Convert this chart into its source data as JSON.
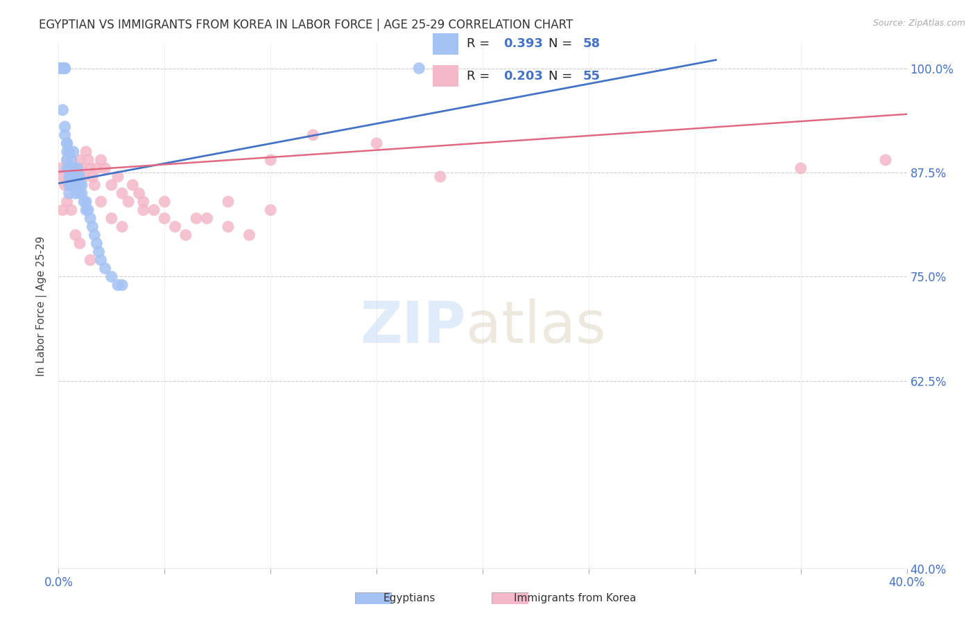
{
  "title": "EGYPTIAN VS IMMIGRANTS FROM KOREA IN LABOR FORCE | AGE 25-29 CORRELATION CHART",
  "source": "Source: ZipAtlas.com",
  "ylabel": "In Labor Force | Age 25-29",
  "xlim": [
    0.0,
    0.4
  ],
  "ylim": [
    0.4,
    1.03
  ],
  "yticks": [
    0.4,
    0.625,
    0.75,
    0.875,
    1.0
  ],
  "ytick_labels": [
    "40.0%",
    "62.5%",
    "75.0%",
    "87.5%",
    "100.0%"
  ],
  "legend_R1": "0.393",
  "legend_N1": "58",
  "legend_R2": "0.203",
  "legend_N2": "55",
  "color_egyptian": "#a4c2f4",
  "color_korea": "#f4b8c8",
  "color_line_egyptian": "#4472c4",
  "color_line_korea": "#e06882",
  "background_color": "#ffffff",
  "eg_line_x0": 0.0,
  "eg_line_y0": 0.862,
  "eg_line_x1": 0.31,
  "eg_line_y1": 1.01,
  "kr_line_x0": 0.0,
  "kr_line_y0": 0.876,
  "kr_line_x1": 0.4,
  "kr_line_y1": 0.945,
  "egyptians_x": [
    0.001,
    0.001,
    0.001,
    0.002,
    0.002,
    0.002,
    0.002,
    0.003,
    0.003,
    0.003,
    0.003,
    0.004,
    0.004,
    0.004,
    0.004,
    0.005,
    0.005,
    0.005,
    0.005,
    0.006,
    0.006,
    0.006,
    0.007,
    0.007,
    0.007,
    0.008,
    0.008,
    0.008,
    0.009,
    0.009,
    0.01,
    0.01,
    0.011,
    0.011,
    0.012,
    0.013,
    0.013,
    0.014,
    0.015,
    0.016,
    0.017,
    0.018,
    0.019,
    0.02,
    0.022,
    0.025,
    0.028,
    0.03,
    0.002,
    0.003,
    0.004,
    0.005,
    0.006,
    0.007,
    0.008,
    0.009,
    0.01,
    0.17
  ],
  "egyptians_y": [
    1.0,
    1.0,
    1.0,
    1.0,
    1.0,
    1.0,
    1.0,
    1.0,
    1.0,
    1.0,
    0.92,
    0.91,
    0.9,
    0.89,
    0.88,
    0.88,
    0.87,
    0.86,
    0.85,
    0.88,
    0.87,
    0.86,
    0.9,
    0.88,
    0.86,
    0.87,
    0.86,
    0.85,
    0.88,
    0.87,
    0.87,
    0.86,
    0.86,
    0.85,
    0.84,
    0.84,
    0.83,
    0.83,
    0.82,
    0.81,
    0.8,
    0.79,
    0.78,
    0.77,
    0.76,
    0.75,
    0.74,
    0.74,
    0.95,
    0.93,
    0.91,
    0.9,
    0.89,
    0.88,
    0.87,
    0.86,
    0.85,
    1.0
  ],
  "korea_x": [
    0.001,
    0.002,
    0.003,
    0.004,
    0.005,
    0.005,
    0.006,
    0.007,
    0.008,
    0.009,
    0.01,
    0.011,
    0.012,
    0.013,
    0.014,
    0.015,
    0.016,
    0.017,
    0.018,
    0.02,
    0.022,
    0.025,
    0.028,
    0.03,
    0.033,
    0.035,
    0.038,
    0.04,
    0.045,
    0.05,
    0.055,
    0.06,
    0.07,
    0.08,
    0.09,
    0.1,
    0.12,
    0.15,
    0.18,
    0.002,
    0.004,
    0.006,
    0.008,
    0.01,
    0.015,
    0.02,
    0.025,
    0.03,
    0.04,
    0.05,
    0.065,
    0.08,
    0.1,
    0.35,
    0.39
  ],
  "korea_y": [
    0.88,
    0.87,
    0.86,
    0.89,
    0.88,
    0.86,
    0.87,
    0.86,
    0.88,
    0.87,
    0.89,
    0.88,
    0.87,
    0.9,
    0.89,
    0.88,
    0.87,
    0.86,
    0.88,
    0.89,
    0.88,
    0.86,
    0.87,
    0.85,
    0.84,
    0.86,
    0.85,
    0.84,
    0.83,
    0.82,
    0.81,
    0.8,
    0.82,
    0.81,
    0.8,
    0.83,
    0.92,
    0.91,
    0.87,
    0.83,
    0.84,
    0.83,
    0.8,
    0.79,
    0.77,
    0.84,
    0.82,
    0.81,
    0.83,
    0.84,
    0.82,
    0.84,
    0.89,
    0.88,
    0.89
  ]
}
